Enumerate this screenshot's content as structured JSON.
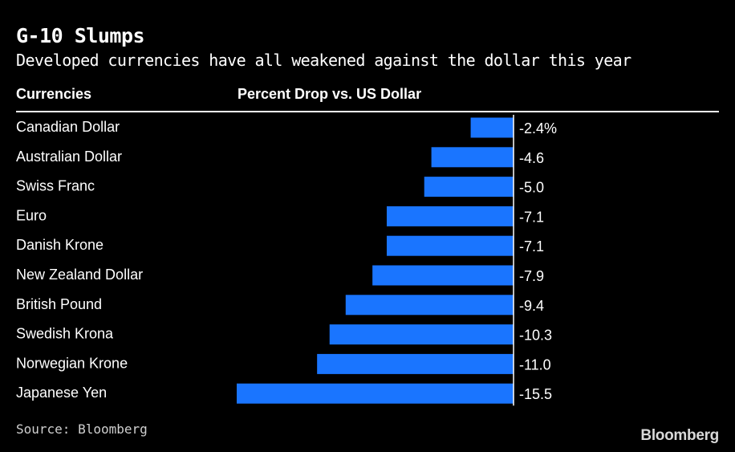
{
  "chart_data": {
    "type": "bar",
    "orientation": "horizontal",
    "title": "G-10 Slumps",
    "subtitle": "Developed currencies have all weakened against the dollar this year",
    "column_headers": {
      "categories": "Currencies",
      "values": "Percent Drop vs. US Dollar"
    },
    "categories": [
      "Canadian Dollar",
      "Australian Dollar",
      "Swiss Franc",
      "Euro",
      "Danish Krone",
      "New Zealand Dollar",
      "British Pound",
      "Swedish Krona",
      "Norwegian Krone",
      "Japanese Yen"
    ],
    "values": [
      -2.4,
      -4.6,
      -5.0,
      -7.1,
      -7.1,
      -7.9,
      -9.4,
      -10.3,
      -11.0,
      -15.5
    ],
    "value_labels": [
      "-2.4%",
      "-4.6",
      "-5.0",
      "-7.1",
      "-7.1",
      "-7.9",
      "-9.4",
      "-10.3",
      "-11.0",
      "-15.5"
    ],
    "xlim": [
      -15.5,
      0
    ],
    "colors": {
      "bar": "#1a75ff",
      "background": "#000000",
      "text": "#ffffff"
    }
  },
  "source": "Source: Bloomberg",
  "brand": "Bloomberg"
}
